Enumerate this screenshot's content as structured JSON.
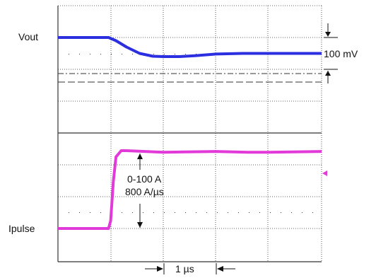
{
  "labels": {
    "vout": "Vout",
    "ipulse": "Ipulse",
    "v_scale": "100 mV",
    "i_step": "0-100 A",
    "slew": "800 A/µs",
    "time_scale": "1 µs"
  },
  "colors": {
    "vout_trace": "#2b2fe0",
    "ipulse_trace": "#e23ad8",
    "grid": "#333333",
    "marker": "#e23ad8"
  },
  "chart_data": {
    "type": "line",
    "title": "",
    "x_unit": "µs",
    "x_per_division": 1,
    "x_divisions": 5,
    "xlim": [
      0,
      5
    ],
    "grid": true,
    "series": [
      {
        "name": "Vout",
        "y_unit": "mV",
        "y_per_division": 100,
        "ylim": [
          -120,
          60
        ],
        "x": [
          0,
          0.96,
          1.1,
          1.3,
          1.55,
          1.8,
          2.0,
          2.3,
          2.6,
          3.0,
          3.5,
          4.0,
          4.5,
          5.0
        ],
        "values": [
          0,
          0,
          -10,
          -30,
          -50,
          -59,
          -60,
          -60,
          -57,
          -52,
          -50,
          -50,
          -50,
          -50
        ]
      },
      {
        "name": "Ipulse",
        "y_unit": "A",
        "ylim": [
          -15,
          115
        ],
        "x": [
          0,
          0.96,
          1.0,
          1.05,
          1.1,
          1.2,
          1.3,
          2.0,
          3.0,
          3.6,
          4.0,
          5.0
        ],
        "values": [
          0,
          0,
          10,
          60,
          92,
          100,
          100,
          98,
          99,
          98,
          98,
          99
        ]
      }
    ]
  }
}
